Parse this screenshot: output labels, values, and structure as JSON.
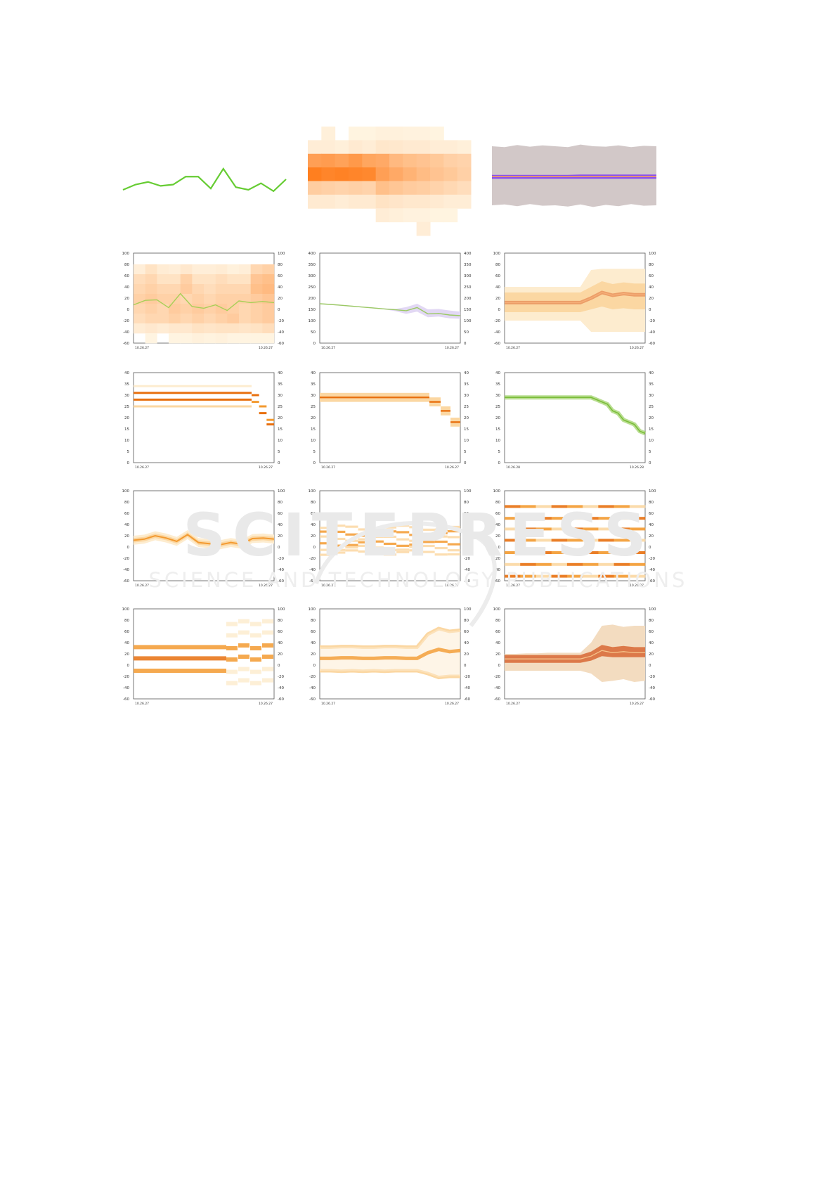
{
  "page": {
    "watermark": {
      "line1": "SCITEPRESS",
      "line2": "SCIENCE AND TECHNOLOGY PUBLICATIONS"
    }
  },
  "colors": {
    "green": "#66cc33",
    "orange_dark": "#e8700f",
    "orange_mid": "#f39a30",
    "orange_light": "#fbd7a2",
    "orange_pale": "#fdeccf",
    "purple": "#8a4ff0",
    "gray_band": "#d2c8c8",
    "red_brown": "#d6602a",
    "axis": "#555555"
  },
  "chart_data": [
    {
      "id": "a1",
      "type": "line",
      "axes": false,
      "series": [
        {
          "values": [
            12,
            16,
            18,
            15,
            16,
            22,
            22,
            13,
            28,
            14,
            12,
            17,
            11,
            20
          ]
        }
      ],
      "ylim": [
        -20,
        60
      ]
    },
    {
      "id": "a2",
      "type": "heatmap",
      "axes": false,
      "columns": 12,
      "rows": [
        [
          0,
          0.08,
          0,
          0.05,
          0.05,
          0.07,
          0.07,
          0.06,
          0.06,
          0.05,
          0,
          0
        ],
        [
          0.1,
          0.1,
          0.08,
          0.12,
          0.1,
          0.15,
          0.14,
          0.12,
          0.12,
          0.1,
          0.1,
          0.08
        ],
        [
          0.7,
          0.72,
          0.68,
          0.75,
          0.65,
          0.62,
          0.5,
          0.45,
          0.42,
          0.38,
          0.32,
          0.3
        ],
        [
          0.95,
          0.9,
          0.92,
          0.9,
          0.88,
          0.7,
          0.62,
          0.55,
          0.48,
          0.42,
          0.38,
          0.32
        ],
        [
          0.35,
          0.32,
          0.3,
          0.32,
          0.3,
          0.45,
          0.4,
          0.36,
          0.34,
          0.3,
          0.26,
          0.22
        ],
        [
          0.12,
          0.12,
          0.1,
          0.12,
          0.12,
          0.18,
          0.16,
          0.14,
          0.14,
          0.12,
          0.1,
          0.1
        ],
        [
          0,
          0,
          0,
          0,
          0,
          0.1,
          0.08,
          0.06,
          0.06,
          0.05,
          0.05,
          0
        ],
        [
          0,
          0,
          0,
          0,
          0,
          0,
          0,
          0,
          0.1,
          0,
          0,
          0
        ]
      ]
    },
    {
      "id": "a3",
      "type": "area",
      "axes": false,
      "outer_upper": [
        80,
        78,
        83,
        79,
        82,
        80,
        78,
        84,
        80,
        79,
        82,
        78,
        81,
        80
      ],
      "outer_lower": [
        -60,
        -58,
        -62,
        -57,
        -61,
        -60,
        -63,
        -58,
        -64,
        -59,
        -62,
        -57,
        -61,
        -60
      ],
      "inner_upper": [
        12,
        12,
        12,
        12,
        12,
        12,
        12,
        13,
        13,
        13,
        13,
        13,
        13,
        13
      ],
      "inner_lower": [
        3,
        3,
        3,
        3,
        3,
        3,
        3,
        3,
        3,
        3,
        3,
        3,
        3,
        3
      ],
      "median": [
        8,
        8,
        8,
        8,
        8,
        8,
        8,
        8,
        8,
        8,
        8,
        8,
        8,
        8
      ],
      "ylim": [
        -90,
        110
      ]
    },
    {
      "id": "b1",
      "type": "heatmap",
      "overlay": "line",
      "yticks": [
        "100",
        "80",
        "60",
        "40",
        "20",
        "0",
        "-20",
        "-40",
        "-60"
      ],
      "xlabels": [
        "10.26.27",
        "10.26.27"
      ],
      "ylim": [
        -60,
        100
      ],
      "heat": [
        [
          0.1,
          0.2,
          0.12,
          0.1,
          0.15,
          0.1,
          0.1,
          0.12,
          0.08,
          0.1,
          0.3,
          0.35
        ],
        [
          0.25,
          0.3,
          0.2,
          0.2,
          0.35,
          0.2,
          0.2,
          0.25,
          0.2,
          0.2,
          0.45,
          0.5
        ],
        [
          0.3,
          0.35,
          0.3,
          0.3,
          0.4,
          0.3,
          0.25,
          0.3,
          0.3,
          0.3,
          0.5,
          0.55
        ],
        [
          0.35,
          0.4,
          0.35,
          0.35,
          0.3,
          0.35,
          0.3,
          0.35,
          0.35,
          0.35,
          0.4,
          0.45
        ],
        [
          0.3,
          0.35,
          0.3,
          0.4,
          0.35,
          0.4,
          0.35,
          0.4,
          0.35,
          0.3,
          0.35,
          0.4
        ],
        [
          0.25,
          0.3,
          0.3,
          0.35,
          0.3,
          0.35,
          0.3,
          0.35,
          0.4,
          0.3,
          0.35,
          0.4
        ],
        [
          0.12,
          0.15,
          0.12,
          0.15,
          0.15,
          0.2,
          0.18,
          0.2,
          0.2,
          0.18,
          0.2,
          0.25
        ],
        [
          0,
          0.05,
          0,
          0.05,
          0.05,
          0.08,
          0.06,
          0.08,
          0.05,
          0.05,
          0.05,
          0.05
        ]
      ],
      "line": [
        8,
        16,
        17,
        3,
        28,
        5,
        2,
        8,
        -2,
        15,
        12,
        14,
        12
      ]
    },
    {
      "id": "b2",
      "type": "line",
      "yticks": [
        "400",
        "350",
        "300",
        "250",
        "200",
        "150",
        "100",
        "50",
        "0"
      ],
      "xlabels": [
        "10.26.27",
        "10.26.27"
      ],
      "ylim": [
        0,
        400
      ],
      "series": [
        {
          "values": [
            175,
            172,
            168,
            164,
            160,
            156,
            152,
            148,
            144,
            158,
            130,
            132,
            125,
            122
          ]
        }
      ],
      "band_upper": [
        177,
        174,
        170,
        166,
        162,
        158,
        154,
        152,
        160,
        175,
        150,
        152,
        145,
        140
      ],
      "band_lower": [
        173,
        170,
        166,
        162,
        158,
        154,
        150,
        142,
        130,
        140,
        115,
        118,
        110,
        108
      ]
    },
    {
      "id": "b3",
      "type": "area",
      "yticks": [
        "100",
        "80",
        "60",
        "40",
        "20",
        "0",
        "-20",
        "-40",
        "-60"
      ],
      "xlabels": [
        "10.26.27",
        "10.26.27"
      ],
      "ylim": [
        -60,
        100
      ],
      "outer_upper": [
        40,
        40,
        40,
        40,
        40,
        40,
        40,
        40,
        70,
        72,
        72,
        72,
        72,
        72
      ],
      "outer_lower": [
        -20,
        -20,
        -20,
        -20,
        -20,
        -20,
        -20,
        -20,
        -40,
        -40,
        -40,
        -40,
        -40,
        -40
      ],
      "mid_upper": [
        30,
        30,
        30,
        30,
        30,
        30,
        30,
        30,
        40,
        50,
        45,
        48,
        46,
        46
      ],
      "mid_lower": [
        -5,
        -5,
        -5,
        -5,
        -5,
        -5,
        -5,
        -5,
        0,
        5,
        0,
        2,
        0,
        0
      ],
      "median": [
        12,
        12,
        12,
        12,
        12,
        12,
        12,
        12,
        20,
        30,
        25,
        28,
        26,
        26
      ]
    },
    {
      "id": "c1",
      "type": "bar",
      "stepwise": true,
      "yticks": [
        "40",
        "35",
        "30",
        "25",
        "20",
        "15",
        "10",
        "5",
        "0"
      ],
      "xlabels": [
        "10.26.27",
        "10.26.27"
      ],
      "ylim": [
        0,
        40
      ],
      "bands": [
        {
          "v": 34,
          "shade": "pale"
        },
        {
          "v": 31,
          "shade": "dark"
        },
        {
          "v": 28,
          "shade": "dark"
        },
        {
          "v": 25,
          "shade": "light"
        }
      ],
      "tail": [
        {
          "v": 30,
          "shade": "dark"
        },
        {
          "v": 27,
          "shade": "mid"
        },
        {
          "v": 25,
          "shade": "mid"
        },
        {
          "v": 22,
          "shade": "dark"
        },
        {
          "v": 19,
          "shade": "mid"
        },
        {
          "v": 17,
          "shade": "dark"
        }
      ]
    },
    {
      "id": "c2",
      "type": "bar",
      "stepwise": true,
      "yticks": [
        "40",
        "35",
        "30",
        "25",
        "20",
        "15",
        "10",
        "5",
        "0"
      ],
      "xlabels": [
        "10.26.27",
        "10.26.27"
      ],
      "ylim": [
        0,
        40
      ],
      "main": 29,
      "steps": [
        {
          "x0": 0.0,
          "x1": 0.78,
          "v": 29
        },
        {
          "x0": 0.78,
          "x1": 0.86,
          "v": 27
        },
        {
          "x0": 0.86,
          "x1": 0.93,
          "v": 23
        },
        {
          "x0": 0.93,
          "x1": 1.0,
          "v": 18
        }
      ]
    },
    {
      "id": "c3",
      "type": "line",
      "yticks": [
        "40",
        "35",
        "30",
        "25",
        "20",
        "15",
        "10",
        "5",
        "0"
      ],
      "xlabels": [
        "10.26.28",
        "10.26.28"
      ],
      "ylim": [
        0,
        40
      ],
      "series": [
        {
          "values": [
            29,
            29,
            29,
            29,
            29,
            29,
            29,
            29,
            29,
            29,
            29,
            29,
            29,
            29,
            29,
            29,
            29,
            28,
            27,
            26,
            23,
            22,
            19,
            18,
            17,
            14,
            13
          ]
        }
      ]
    },
    {
      "id": "d1",
      "type": "area",
      "yticks": [
        "100",
        "80",
        "60",
        "40",
        "20",
        "0",
        "-20",
        "-40",
        "-60"
      ],
      "xlabels": [
        "10.26.27",
        "10.26.27"
      ],
      "ylim": [
        -60,
        100
      ],
      "series": [
        {
          "values": [
            12,
            14,
            20,
            16,
            10,
            22,
            8,
            6,
            4,
            8,
            5,
            15,
            16,
            14
          ]
        }
      ]
    },
    {
      "id": "d2",
      "type": "bar",
      "yticks": [
        "100",
        "80",
        "60",
        "40",
        "20",
        "0",
        "-20",
        "-40",
        "-60"
      ],
      "xlabels": [
        "10.26.27",
        "10.26.27"
      ],
      "ylim": [
        -60,
        100
      ],
      "levels": [
        34,
        24,
        15,
        6,
        -2,
        -10
      ],
      "segments": 11
    },
    {
      "id": "d3",
      "type": "bar",
      "yticks": [
        "100",
        "80",
        "60",
        "40",
        "20",
        "0",
        "-20",
        "-40",
        "-60"
      ],
      "xlabels": [
        "10.26.27",
        "10.26.27"
      ],
      "ylim": [
        -60,
        100
      ],
      "levels": [
        72,
        51,
        32,
        12,
        -10,
        -31,
        -52
      ],
      "segments": 9
    },
    {
      "id": "e1",
      "type": "bar",
      "yticks": [
        "100",
        "80",
        "60",
        "40",
        "20",
        "0",
        "-20",
        "-40",
        "-60"
      ],
      "xlabels": [
        "10.26.27",
        "10.26.27"
      ],
      "ylim": [
        -60,
        100
      ],
      "levels": [
        32,
        12,
        -10
      ],
      "late_levels": [
        75,
        55,
        32,
        12,
        -10,
        -30
      ]
    },
    {
      "id": "e2",
      "type": "area",
      "yticks": [
        "100",
        "80",
        "60",
        "40",
        "20",
        "0",
        "-20",
        "-40",
        "-60"
      ],
      "xlabels": [
        "10.26.27",
        "10.26.27"
      ],
      "ylim": [
        -60,
        100
      ],
      "series": [
        {
          "values": [
            12,
            12,
            13,
            13,
            12,
            12,
            13,
            13,
            12,
            12,
            22,
            28,
            24,
            26
          ]
        }
      ],
      "upper": [
        32,
        32,
        33,
        33,
        32,
        32,
        33,
        33,
        32,
        32,
        55,
        65,
        60,
        62
      ],
      "lower": [
        -10,
        -10,
        -11,
        -10,
        -11,
        -10,
        -11,
        -10,
        -10,
        -10,
        -15,
        -22,
        -20,
        -20
      ]
    },
    {
      "id": "e3",
      "type": "area",
      "yticks": [
        "100",
        "80",
        "60",
        "40",
        "20",
        "0",
        "-20",
        "-40",
        "-60"
      ],
      "xlabels": [
        "10.26.27",
        "10.26.27"
      ],
      "ylim": [
        -60,
        100
      ],
      "outer_upper": [
        20,
        20,
        21,
        21,
        22,
        22,
        22,
        22,
        40,
        70,
        72,
        68,
        70,
        70
      ],
      "outer_lower": [
        -10,
        -10,
        -10,
        -10,
        -10,
        -10,
        -10,
        -10,
        -15,
        -30,
        -28,
        -25,
        -30,
        -28
      ],
      "inner_upper": [
        18,
        18,
        18,
        18,
        18,
        18,
        18,
        18,
        24,
        36,
        32,
        34,
        32,
        32
      ],
      "inner_lower": [
        4,
        4,
        4,
        4,
        4,
        4,
        4,
        4,
        8,
        16,
        14,
        14,
        14,
        14
      ],
      "median": [
        11,
        11,
        11,
        11,
        11,
        11,
        11,
        11,
        16,
        26,
        22,
        24,
        22,
        22
      ]
    }
  ]
}
